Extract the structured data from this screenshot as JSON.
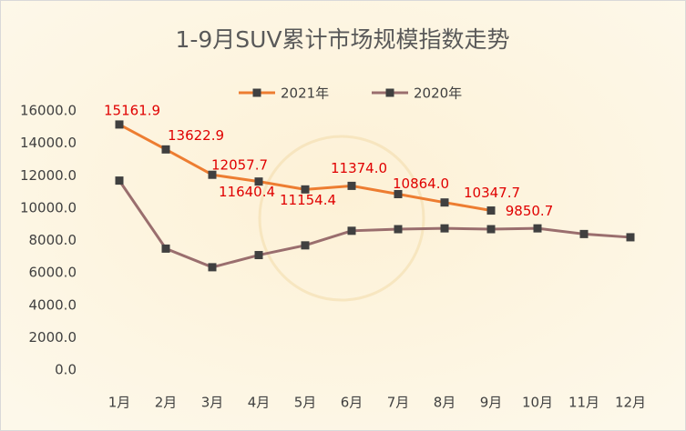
{
  "chart_data": {
    "type": "line",
    "title": "1-9月SUV累计市场规模指数走势",
    "categories": [
      "1月",
      "2月",
      "3月",
      "4月",
      "5月",
      "6月",
      "7月",
      "8月",
      "9月",
      "10月",
      "11月",
      "12月"
    ],
    "series": [
      {
        "name": "2021年",
        "color": "#ed7d31",
        "values": [
          15161.9,
          13622.9,
          12057.7,
          11640.4,
          11154.4,
          11374.0,
          10864.0,
          10347.7,
          9850.7,
          null,
          null,
          null
        ],
        "value_labels": [
          "15161.9",
          "13622.9",
          "12057.7",
          "11640.4",
          "11154.4",
          "11374.0",
          "10864.0",
          "10347.7",
          "9850.7",
          null,
          null,
          null
        ]
      },
      {
        "name": "2020年",
        "color": "#9a6e6e",
        "values": [
          11700,
          7500,
          6350,
          7100,
          7700,
          8600,
          8700,
          8750,
          8700,
          8750,
          8400,
          8200
        ]
      }
    ],
    "ylim": [
      0,
      16000
    ],
    "yticks": [
      {
        "value": 0,
        "label": "0.0"
      },
      {
        "value": 2000,
        "label": "2000.0"
      },
      {
        "value": 4000,
        "label": "4000.0"
      },
      {
        "value": 6000,
        "label": "6000.0"
      },
      {
        "value": 8000,
        "label": "8000.0"
      },
      {
        "value": 10000,
        "label": "10000.0"
      },
      {
        "value": 12000,
        "label": "12000.0"
      },
      {
        "value": 14000,
        "label": "14000.0"
      },
      {
        "value": 16000,
        "label": "16000.0"
      }
    ],
    "grid": false,
    "legend": "top"
  }
}
